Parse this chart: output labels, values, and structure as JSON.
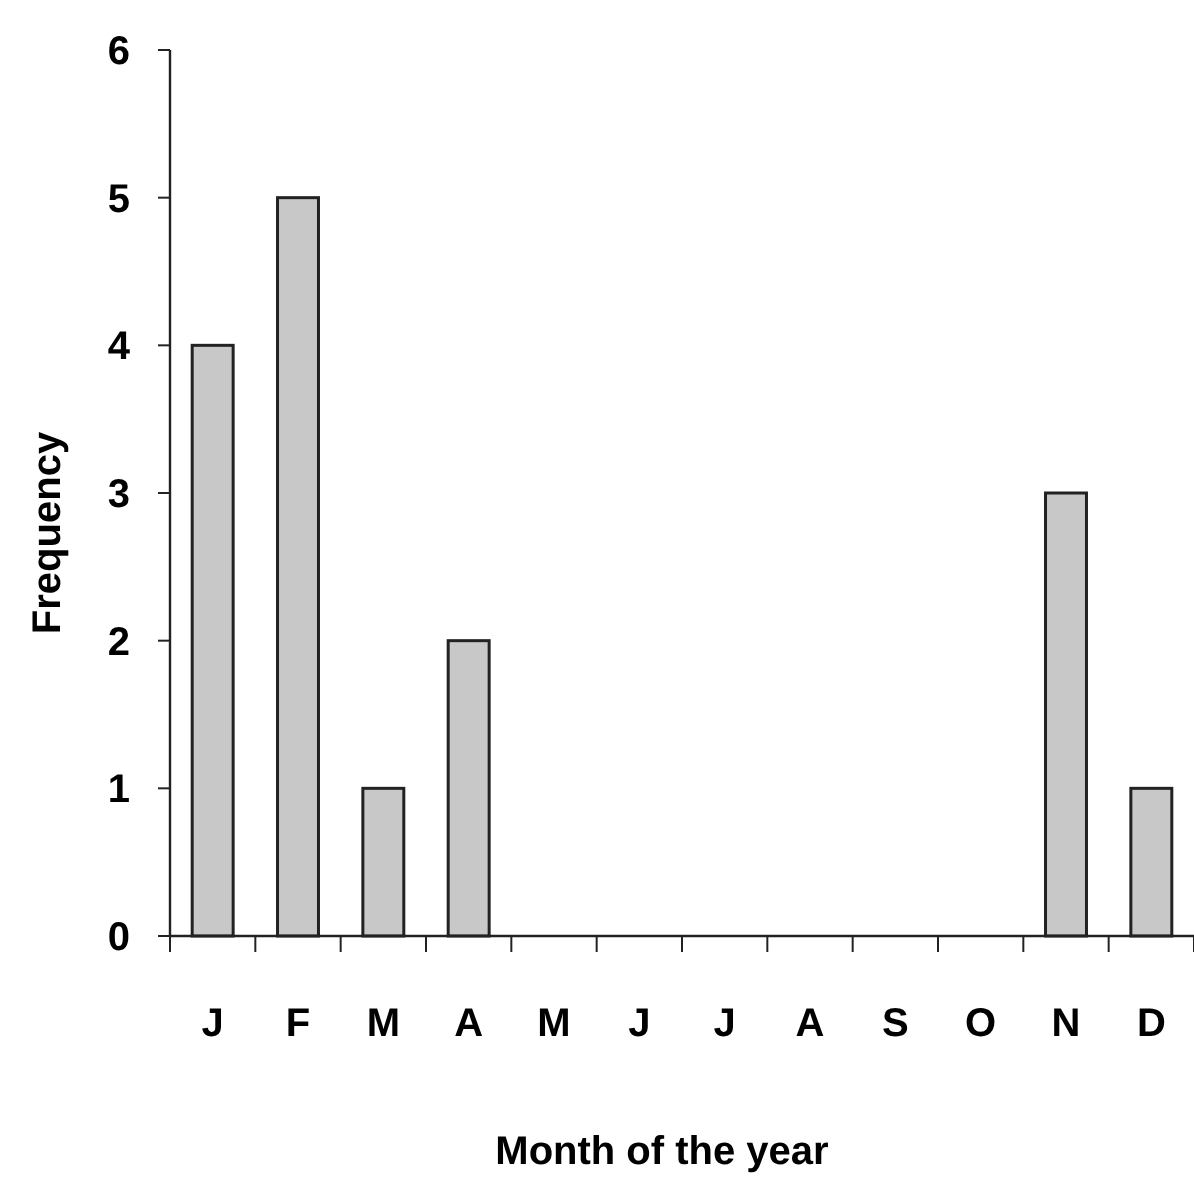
{
  "chart_data": {
    "type": "bar",
    "xlabel": "Month of the year",
    "ylabel": "Frequency",
    "categories": [
      "J",
      "F",
      "M",
      "A",
      "M",
      "J",
      "J",
      "A",
      "S",
      "O",
      "N",
      "D"
    ],
    "values": [
      4,
      5,
      1,
      2,
      0,
      0,
      0,
      0,
      0,
      0,
      3,
      1
    ],
    "color": "#c8c8c8",
    "ylim": [
      0,
      6
    ],
    "yticks": [
      0,
      1,
      2,
      3,
      4,
      5,
      6
    ],
    "grid": false
  }
}
